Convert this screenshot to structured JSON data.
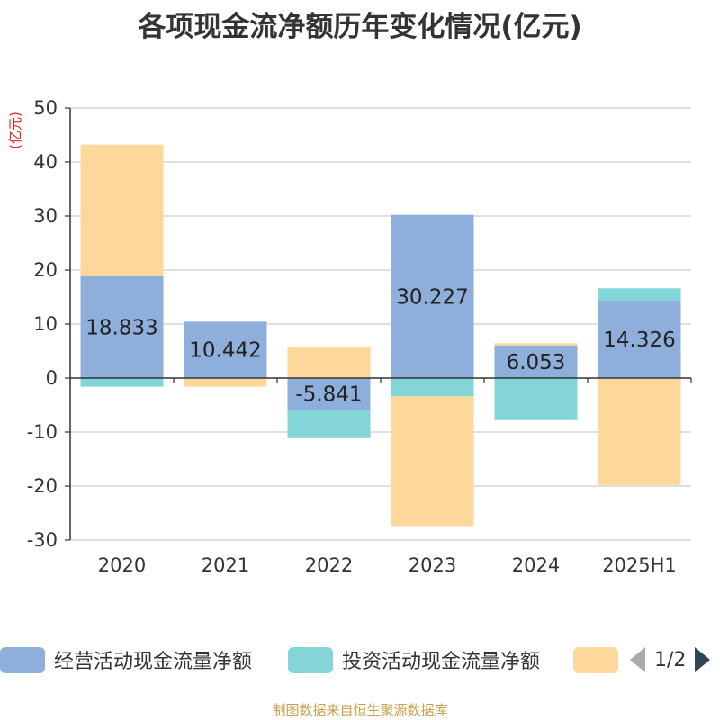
{
  "title": "各项现金流净额历年变化情况(亿元)",
  "source": "制图数据来自恒生聚源数据库",
  "colors": {
    "operating": "#8eaedb",
    "investing": "#84d5d8",
    "financing": "#fed89a",
    "axis": "#333333",
    "grid": "#cccccc",
    "unit": "#dd2222"
  },
  "legend": {
    "items": [
      {
        "label": "经营活动现金流量净额",
        "color": "#8eaedb"
      },
      {
        "label": "投资活动现金流量净额",
        "color": "#84d5d8"
      },
      {
        "label": "",
        "color": "#fed89a"
      }
    ],
    "pager": "1/2"
  },
  "chart_data": {
    "type": "bar",
    "stacked": true,
    "title": "各项现金流净额历年变化情况(亿元)",
    "ylabel": "(亿元)",
    "ylim": [
      -30,
      50
    ],
    "yticks": [
      50,
      40,
      30,
      20,
      10,
      0,
      -10,
      -20,
      -30
    ],
    "grid": true,
    "legend_position": "bottom",
    "categories": [
      "2020",
      "2021",
      "2022",
      "2023",
      "2024",
      "2025H1"
    ],
    "series": [
      {
        "name": "经营活动现金流量净额",
        "color": "#8eaedb",
        "values": [
          18.833,
          10.442,
          -5.841,
          30.227,
          6.053,
          14.326
        ],
        "labels": [
          "18.833",
          "10.442",
          "-5.841",
          "30.227",
          "6.053",
          "14.326"
        ]
      },
      {
        "name": "投资活动现金流量净额",
        "color": "#84d5d8",
        "values": [
          -1.6,
          0.0,
          -5.3,
          -3.4,
          -7.8,
          2.3
        ]
      },
      {
        "name": "",
        "color": "#fed89a",
        "values": [
          24.4,
          -1.6,
          5.8,
          -24.0,
          0.4,
          -19.8
        ]
      }
    ]
  }
}
